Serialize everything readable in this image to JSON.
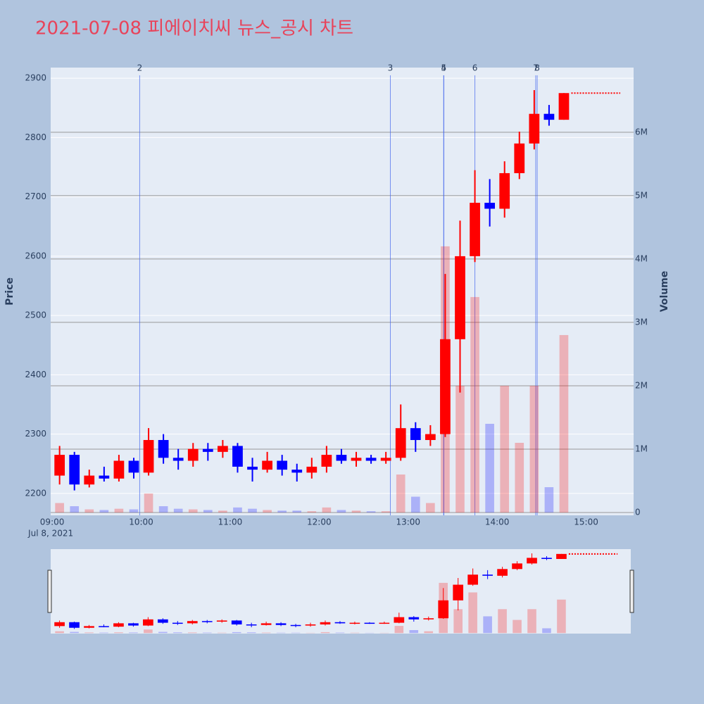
{
  "chart_data": {
    "type": "candlestick",
    "title": "2021-07-08 피에이치씨 뉴스_공시 차트",
    "y_label": "Price",
    "y2_label": "Volume",
    "xlim": [
      "08:59",
      "15:32"
    ],
    "xticks": [
      "09:00",
      "10:00",
      "11:00",
      "12:00",
      "13:00",
      "14:00",
      "15:00"
    ],
    "xdate": "Jul 8, 2021",
    "ylim": [
      2163,
      2918
    ],
    "yticks": [
      2200,
      2300,
      2400,
      2500,
      2600,
      2700,
      2800,
      2900
    ],
    "y2lim": [
      -44000,
      7020000
    ],
    "y2ticks": [
      0,
      {
        "value": 1000000,
        "label": "1M"
      },
      {
        "value": 2000000,
        "label": "2M"
      },
      {
        "value": 3000000,
        "label": "3M"
      },
      {
        "value": 4000000,
        "label": "4M"
      },
      {
        "value": 5000000,
        "label": "5M"
      },
      {
        "value": 6000000,
        "label": "6M"
      }
    ],
    "increasing_color": "#ff0000",
    "decreasing_color": "#0000ff",
    "x": [
      "09:05",
      "09:15",
      "09:25",
      "09:35",
      "09:45",
      "09:55",
      "10:05",
      "10:15",
      "10:25",
      "10:35",
      "10:45",
      "10:55",
      "11:05",
      "11:15",
      "11:25",
      "11:35",
      "11:45",
      "11:55",
      "12:05",
      "12:15",
      "12:25",
      "12:35",
      "12:45",
      "12:55",
      "13:05",
      "13:15",
      "13:25",
      "13:35",
      "13:45",
      "13:55",
      "14:05",
      "14:15",
      "14:25",
      "14:35",
      "14:45"
    ],
    "open": [
      2230,
      2265,
      2215,
      2230,
      2225,
      2255,
      2235,
      2290,
      2260,
      2255,
      2275,
      2270,
      2280,
      2245,
      2240,
      2255,
      2240,
      2235,
      2245,
      2265,
      2255,
      2260,
      2255,
      2260,
      2310,
      2290,
      2300,
      2460,
      2600,
      2690,
      2680,
      2740,
      2790,
      2840,
      2830
    ],
    "high": [
      2280,
      2270,
      2240,
      2245,
      2265,
      2260,
      2310,
      2300,
      2275,
      2285,
      2285,
      2290,
      2285,
      2260,
      2270,
      2265,
      2250,
      2260,
      2280,
      2275,
      2270,
      2265,
      2270,
      2350,
      2320,
      2315,
      2570,
      2660,
      2745,
      2730,
      2760,
      2810,
      2880,
      2855,
      2875
    ],
    "low": [
      2215,
      2205,
      2210,
      2220,
      2220,
      2225,
      2230,
      2250,
      2240,
      2245,
      2255,
      2260,
      2235,
      2220,
      2235,
      2230,
      2220,
      2225,
      2235,
      2250,
      2245,
      2250,
      2250,
      2255,
      2270,
      2280,
      2295,
      2370,
      2590,
      2650,
      2665,
      2730,
      2780,
      2820,
      2830
    ],
    "close": [
      2265,
      2215,
      2230,
      2225,
      2255,
      2235,
      2290,
      2260,
      2255,
      2275,
      2270,
      2280,
      2245,
      2240,
      2255,
      2240,
      2235,
      2245,
      2265,
      2255,
      2260,
      2255,
      2260,
      2310,
      2290,
      2300,
      2460,
      2600,
      2690,
      2680,
      2740,
      2790,
      2840,
      2830,
      2875
    ],
    "volume": [
      150000,
      100000,
      50000,
      40000,
      60000,
      50000,
      300000,
      100000,
      60000,
      50000,
      40000,
      30000,
      80000,
      60000,
      40000,
      30000,
      30000,
      20000,
      80000,
      40000,
      30000,
      20000,
      20000,
      600000,
      250000,
      150000,
      4200000,
      2000000,
      3400000,
      1400000,
      2000000,
      1100000,
      2000000,
      400000,
      2800000
    ],
    "after_x": [
      "14:50",
      "15:23"
    ],
    "after_values": [
      2875,
      2875
    ],
    "news": [
      {
        "label": "2",
        "x": "09:59"
      },
      {
        "label": "3",
        "x": "12:48"
      },
      {
        "label": "4",
        "x": "13:24"
      },
      {
        "label": "5",
        "x": "13:24"
      },
      {
        "label": "6",
        "x": "13:45"
      },
      {
        "label": "7",
        "x": "14:26"
      },
      {
        "label": "8",
        "x": "14:27"
      }
    ]
  }
}
